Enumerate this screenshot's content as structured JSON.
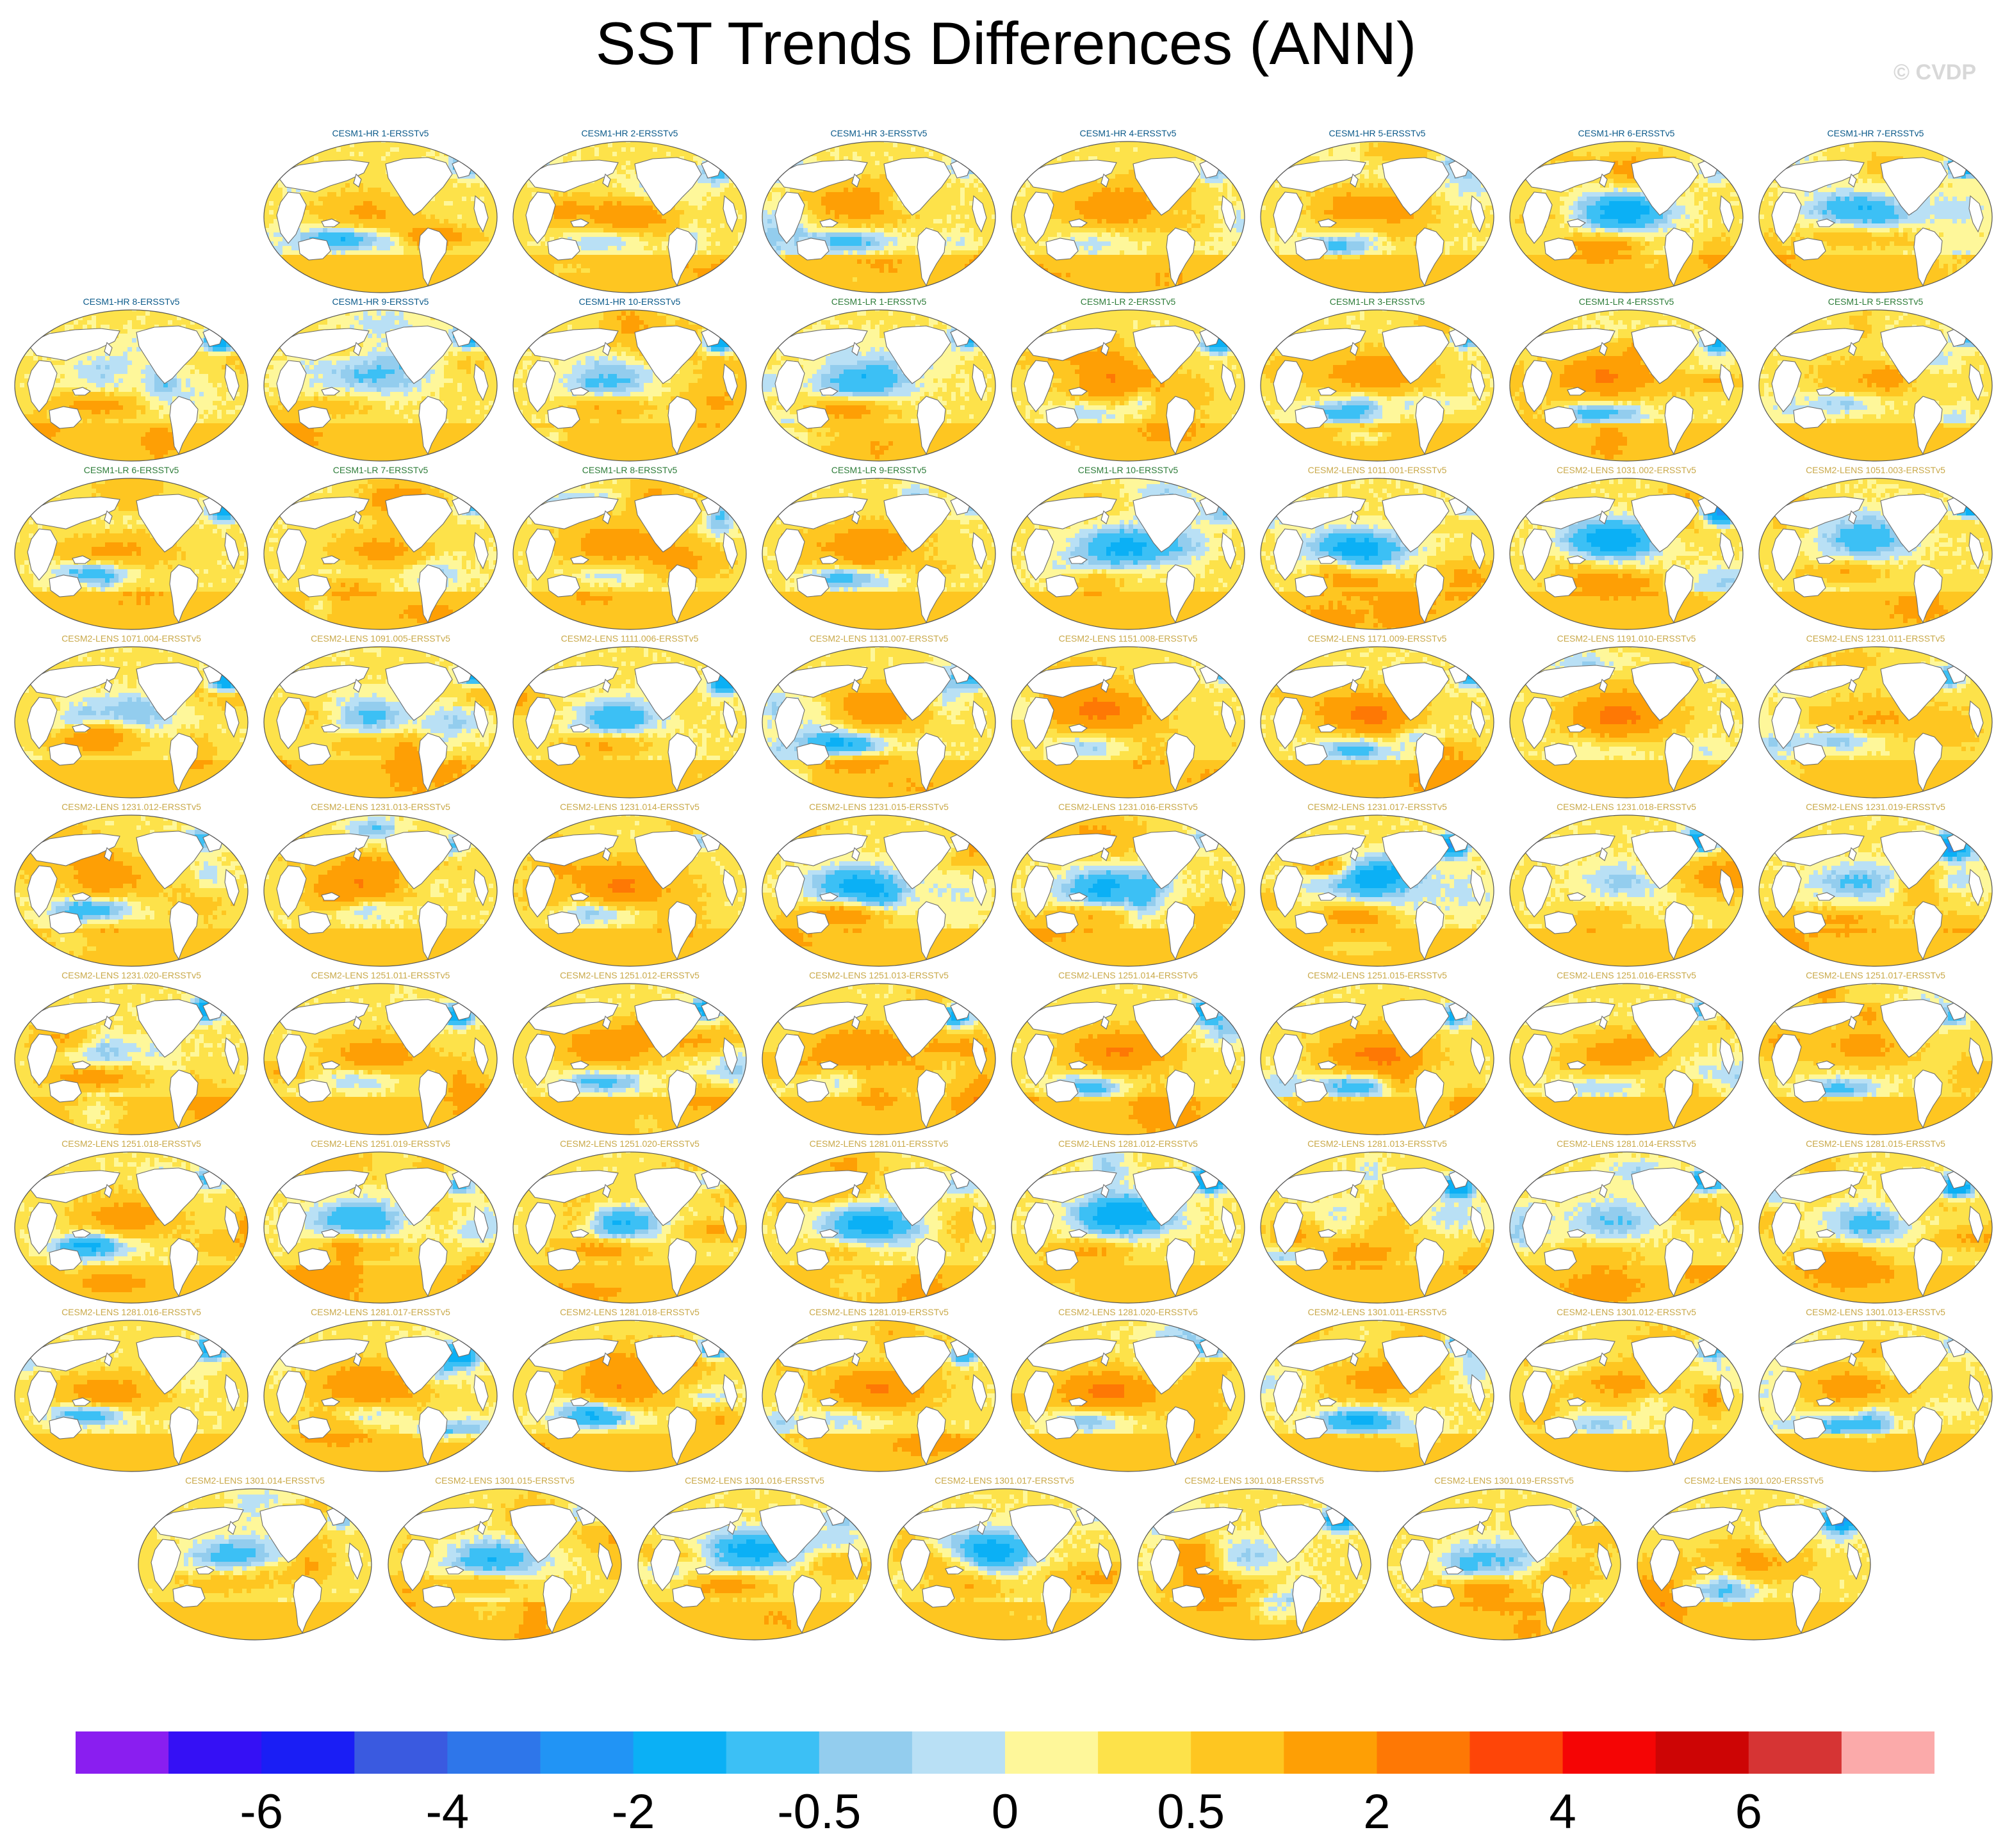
{
  "chart_data": {
    "type": "heatmap",
    "title": "SST Trends Differences (ANN)",
    "watermark": "© CVDP",
    "colorbar": {
      "colors": [
        "#8a1ef0",
        "#3510f5",
        "#1a1ef5",
        "#3a5ae0",
        "#2e76ea",
        "#2194f5",
        "#0bb0f5",
        "#3cc0f5",
        "#93cdee",
        "#b9e0f5",
        "#fef79a",
        "#fde24a",
        "#fec621",
        "#fe9f05",
        "#fe7805",
        "#fe4508",
        "#f50505",
        "#cd0505",
        "#d63434",
        "#fbaaaa"
      ],
      "tick_labels": [
        "-6",
        "-4",
        "-2",
        "-0.5",
        "0",
        "0.5",
        "2",
        "4",
        "6"
      ]
    },
    "panels": [
      {
        "label": "CESM1-HR 1-ERSSTv5",
        "group": "hr"
      },
      {
        "label": "CESM1-HR 2-ERSSTv5",
        "group": "hr"
      },
      {
        "label": "CESM1-HR 3-ERSSTv5",
        "group": "hr"
      },
      {
        "label": "CESM1-HR 4-ERSSTv5",
        "group": "hr"
      },
      {
        "label": "CESM1-HR 5-ERSSTv5",
        "group": "hr"
      },
      {
        "label": "CESM1-HR 6-ERSSTv5",
        "group": "hr"
      },
      {
        "label": "CESM1-HR 7-ERSSTv5",
        "group": "hr"
      },
      {
        "label": "CESM1-HR 8-ERSSTv5",
        "group": "hr"
      },
      {
        "label": "CESM1-HR 9-ERSSTv5",
        "group": "hr"
      },
      {
        "label": "CESM1-HR 10-ERSSTv5",
        "group": "hr"
      },
      {
        "label": "CESM1-LR 1-ERSSTv5",
        "group": "lr"
      },
      {
        "label": "CESM1-LR 2-ERSSTv5",
        "group": "lr"
      },
      {
        "label": "CESM1-LR 3-ERSSTv5",
        "group": "lr"
      },
      {
        "label": "CESM1-LR 4-ERSSTv5",
        "group": "lr"
      },
      {
        "label": "CESM1-LR 5-ERSSTv5",
        "group": "lr"
      },
      {
        "label": "CESM1-LR 6-ERSSTv5",
        "group": "lr"
      },
      {
        "label": "CESM1-LR 7-ERSSTv5",
        "group": "lr"
      },
      {
        "label": "CESM1-LR 8-ERSSTv5",
        "group": "lr"
      },
      {
        "label": "CESM1-LR 9-ERSSTv5",
        "group": "lr"
      },
      {
        "label": "CESM1-LR 10-ERSSTv5",
        "group": "lr"
      },
      {
        "label": "CESM2-LENS 1011.001-ERSSTv5",
        "group": "lens"
      },
      {
        "label": "CESM2-LENS 1031.002-ERSSTv5",
        "group": "lens"
      },
      {
        "label": "CESM2-LENS 1051.003-ERSSTv5",
        "group": "lens"
      },
      {
        "label": "CESM2-LENS 1071.004-ERSSTv5",
        "group": "lens"
      },
      {
        "label": "CESM2-LENS 1091.005-ERSSTv5",
        "group": "lens"
      },
      {
        "label": "CESM2-LENS 1111.006-ERSSTv5",
        "group": "lens"
      },
      {
        "label": "CESM2-LENS 1131.007-ERSSTv5",
        "group": "lens"
      },
      {
        "label": "CESM2-LENS 1151.008-ERSSTv5",
        "group": "lens"
      },
      {
        "label": "CESM2-LENS 1171.009-ERSSTv5",
        "group": "lens"
      },
      {
        "label": "CESM2-LENS 1191.010-ERSSTv5",
        "group": "lens"
      },
      {
        "label": "CESM2-LENS 1231.011-ERSSTv5",
        "group": "lens"
      },
      {
        "label": "CESM2-LENS 1231.012-ERSSTv5",
        "group": "lens"
      },
      {
        "label": "CESM2-LENS 1231.013-ERSSTv5",
        "group": "lens"
      },
      {
        "label": "CESM2-LENS 1231.014-ERSSTv5",
        "group": "lens"
      },
      {
        "label": "CESM2-LENS 1231.015-ERSSTv5",
        "group": "lens"
      },
      {
        "label": "CESM2-LENS 1231.016-ERSSTv5",
        "group": "lens"
      },
      {
        "label": "CESM2-LENS 1231.017-ERSSTv5",
        "group": "lens"
      },
      {
        "label": "CESM2-LENS 1231.018-ERSSTv5",
        "group": "lens"
      },
      {
        "label": "CESM2-LENS 1231.019-ERSSTv5",
        "group": "lens"
      },
      {
        "label": "CESM2-LENS 1231.020-ERSSTv5",
        "group": "lens"
      },
      {
        "label": "CESM2-LENS 1251.011-ERSSTv5",
        "group": "lens"
      },
      {
        "label": "CESM2-LENS 1251.012-ERSSTv5",
        "group": "lens"
      },
      {
        "label": "CESM2-LENS 1251.013-ERSSTv5",
        "group": "lens"
      },
      {
        "label": "CESM2-LENS 1251.014-ERSSTv5",
        "group": "lens"
      },
      {
        "label": "CESM2-LENS 1251.015-ERSSTv5",
        "group": "lens"
      },
      {
        "label": "CESM2-LENS 1251.016-ERSSTv5",
        "group": "lens"
      },
      {
        "label": "CESM2-LENS 1251.017-ERSSTv5",
        "group": "lens"
      },
      {
        "label": "CESM2-LENS 1251.018-ERSSTv5",
        "group": "lens"
      },
      {
        "label": "CESM2-LENS 1251.019-ERSSTv5",
        "group": "lens"
      },
      {
        "label": "CESM2-LENS 1251.020-ERSSTv5",
        "group": "lens"
      },
      {
        "label": "CESM2-LENS 1281.011-ERSSTv5",
        "group": "lens"
      },
      {
        "label": "CESM2-LENS 1281.012-ERSSTv5",
        "group": "lens"
      },
      {
        "label": "CESM2-LENS 1281.013-ERSSTv5",
        "group": "lens"
      },
      {
        "label": "CESM2-LENS 1281.014-ERSSTv5",
        "group": "lens"
      },
      {
        "label": "CESM2-LENS 1281.015-ERSSTv5",
        "group": "lens"
      },
      {
        "label": "CESM2-LENS 1281.016-ERSSTv5",
        "group": "lens"
      },
      {
        "label": "CESM2-LENS 1281.017-ERSSTv5",
        "group": "lens"
      },
      {
        "label": "CESM2-LENS 1281.018-ERSSTv5",
        "group": "lens"
      },
      {
        "label": "CESM2-LENS 1281.019-ERSSTv5",
        "group": "lens"
      },
      {
        "label": "CESM2-LENS 1281.020-ERSSTv5",
        "group": "lens"
      },
      {
        "label": "CESM2-LENS 1301.011-ERSSTv5",
        "group": "lens"
      },
      {
        "label": "CESM2-LENS 1301.012-ERSSTv5",
        "group": "lens"
      },
      {
        "label": "CESM2-LENS 1301.013-ERSSTv5",
        "group": "lens"
      },
      {
        "label": "CESM2-LENS 1301.014-ERSSTv5",
        "group": "lens"
      },
      {
        "label": "CESM2-LENS 1301.015-ERSSTv5",
        "group": "lens"
      },
      {
        "label": "CESM2-LENS 1301.016-ERSSTv5",
        "group": "lens"
      },
      {
        "label": "CESM2-LENS 1301.017-ERSSTv5",
        "group": "lens"
      },
      {
        "label": "CESM2-LENS 1301.018-ERSSTv5",
        "group": "lens"
      },
      {
        "label": "CESM2-LENS 1301.019-ERSSTv5",
        "group": "lens"
      },
      {
        "label": "CESM2-LENS 1301.020-ERSSTv5",
        "group": "lens"
      }
    ]
  },
  "title_colors": {
    "hr": "#0b5a8a",
    "lr": "#2e7d3a",
    "lens": "#c9a94a"
  }
}
